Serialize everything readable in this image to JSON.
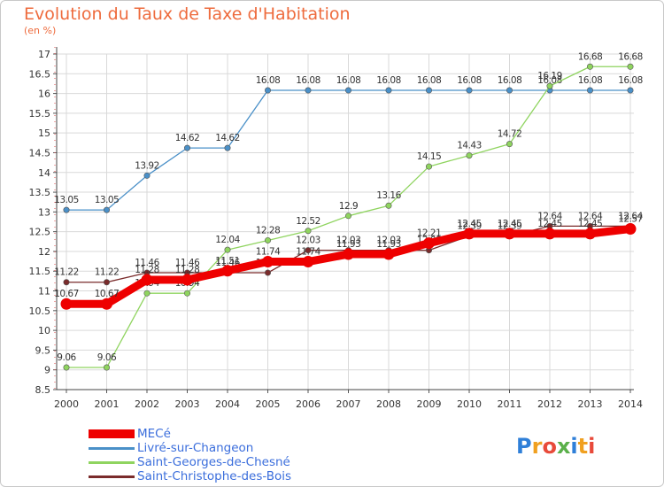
{
  "header": {
    "title": "Evolution du Taux de Taxe d'Habitation",
    "unit": "(en %)"
  },
  "logo": {
    "text": "Proxiti"
  },
  "colors": {
    "title": "#ee6b3d",
    "legend_text": "#3b6edc",
    "grid": "#d9d9d9"
  },
  "chart_data": {
    "type": "line",
    "title": "Evolution du Taux de Taxe d'Habitation",
    "ylabel": "(en %)",
    "x": [
      "2000",
      "2001",
      "2002",
      "2003",
      "2004",
      "2005",
      "2006",
      "2007",
      "2008",
      "2009",
      "2010",
      "2011",
      "2012",
      "2013",
      "2014"
    ],
    "ylim": [
      8.5,
      17
    ],
    "yticks": [
      "8.5",
      "9",
      "9.5",
      "10",
      "10.5",
      "11",
      "11.5",
      "12",
      "12.5",
      "13",
      "13.5",
      "14",
      "14.5",
      "15",
      "15.5",
      "16",
      "16.5",
      "17"
    ],
    "grid": true,
    "legend": "bottom-left",
    "series": [
      {
        "name": "Livré-sur-Changeon",
        "color": "#4a90c8",
        "values": [
          13.05,
          13.05,
          13.92,
          14.62,
          14.62,
          16.08,
          16.08,
          16.08,
          16.08,
          16.08,
          16.08,
          16.08,
          16.08,
          16.08,
          16.08
        ],
        "labels": [
          "13.05",
          "13.05",
          "13.92",
          "14.62",
          "14.62",
          "16.08",
          "16.08",
          "16.08",
          "16.08",
          "16.08",
          "16.08",
          "16.08",
          "16.08",
          "16.08",
          "16.08"
        ]
      },
      {
        "name": "Saint-Georges-de-Chesné",
        "color": "#8fd45f",
        "values": [
          9.06,
          9.06,
          10.94,
          10.94,
          12.04,
          12.28,
          12.52,
          12.9,
          13.16,
          14.15,
          14.43,
          14.72,
          16.19,
          16.68,
          16.68
        ],
        "labels": [
          "9.06",
          "9.06",
          "10.94",
          "10.94",
          "12.04",
          "12.28",
          "12.52",
          "12.9",
          "13.16",
          "14.15",
          "14.43",
          "14.72",
          "16.19",
          "16.68",
          "16.68"
        ]
      },
      {
        "name": "Saint-Christophe-des-Bois",
        "color": "#7a2b2b",
        "values": [
          11.22,
          11.22,
          11.46,
          11.46,
          11.46,
          11.46,
          12.03,
          12.03,
          12.03,
          12.03,
          12.39,
          12.39,
          12.64,
          12.64,
          12.64
        ],
        "labels": [
          "11.22",
          "11.22",
          "11.46",
          "11.46",
          "11.46",
          "11.46",
          "12.03",
          "12.03",
          "12.03",
          "12.03",
          "12.39",
          "12.39",
          "12.64",
          "12.64",
          "12.64"
        ]
      },
      {
        "name": "MECé",
        "color": "#ee0000",
        "values": [
          10.67,
          10.67,
          11.28,
          11.28,
          11.51,
          11.74,
          11.74,
          11.93,
          11.93,
          12.21,
          12.45,
          12.45,
          12.45,
          12.45,
          12.57
        ],
        "labels": [
          "10.67",
          "10.67",
          "11.28",
          "11.28",
          "11.51",
          "11.74",
          "11.74",
          "11.93",
          "11.93",
          "12.21",
          "12.45",
          "12.45",
          "12.45",
          "12.45",
          "12.57"
        ]
      }
    ]
  },
  "legend": {
    "items": [
      {
        "label": "MECé",
        "color": "#ee0000",
        "thick": true
      },
      {
        "label": "Livré-sur-Changeon",
        "color": "#4a90c8",
        "thick": false
      },
      {
        "label": "Saint-Georges-de-Chesné",
        "color": "#8fd45f",
        "thick": false
      },
      {
        "label": "Saint-Christophe-des-Bois",
        "color": "#7a2b2b",
        "thick": false
      }
    ]
  }
}
